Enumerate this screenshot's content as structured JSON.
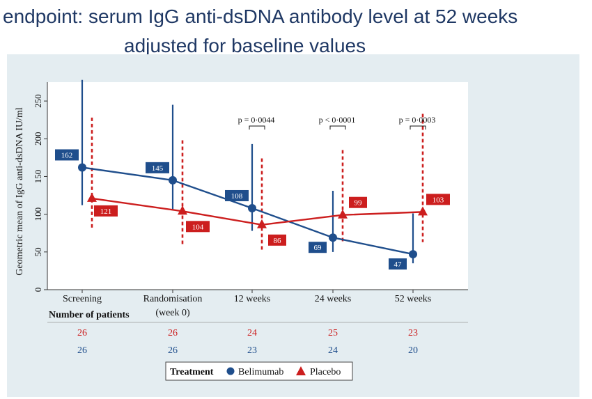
{
  "title_line1": "endpoint: serum IgG anti-dsDNA antibody level at 52 weeks",
  "title_line2": "adjusted for baseline values",
  "chart_data": {
    "type": "line",
    "ylabel": "Geometric mean of IgG anti-dsDNA IU/ml",
    "ylim": [
      0,
      275
    ],
    "yticks": [
      0,
      50,
      100,
      150,
      200,
      250
    ],
    "categories": [
      "Screening",
      "Randomisation\n(week 0)",
      "12 weeks",
      "24 weeks",
      "52 weeks"
    ],
    "series": [
      {
        "name": "Belimumab",
        "color": "#1f4e8c",
        "marker": "circle",
        "values": [
          162,
          145,
          108,
          69,
          47
        ],
        "labels": [
          "162",
          "145",
          "108",
          "69",
          "47"
        ],
        "ci_low": [
          112,
          106,
          78,
          50,
          35
        ],
        "ci_high": [
          278,
          245,
          193,
          131,
          101
        ],
        "ci_style": "solid"
      },
      {
        "name": "Placebo",
        "color": "#cc1e1e",
        "marker": "triangle",
        "values": [
          121,
          104,
          86,
          99,
          103
        ],
        "labels": [
          "121",
          "104",
          "86",
          "99",
          "103"
        ],
        "ci_low": [
          80,
          60,
          50,
          63,
          63
        ],
        "ci_high": [
          228,
          198,
          174,
          185,
          233
        ],
        "ci_style": "dashed"
      }
    ],
    "pvalues": [
      {
        "category_index": 2,
        "text": "p = 0·0044"
      },
      {
        "category_index": 3,
        "text": "p < 0·0001"
      },
      {
        "category_index": 4,
        "text": "p = 0·0003"
      }
    ],
    "patients": {
      "heading": "Number of patients",
      "placebo": [
        "26",
        "26",
        "24",
        "25",
        "23"
      ],
      "belimumab": [
        "26",
        "26",
        "23",
        "24",
        "20"
      ]
    },
    "legend": {
      "title": "Treatment",
      "items": [
        "Belimumab",
        "Placebo"
      ],
      "placement": "bottom"
    },
    "grid": false
  }
}
